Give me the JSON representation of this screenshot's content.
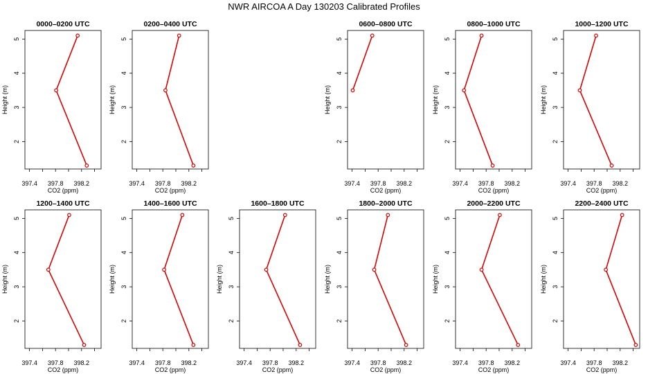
{
  "title": "NWR AIRCOA A  Day 130203  Calibrated Profiles",
  "colors": {
    "series": "#dd0000",
    "axis": "#000000",
    "background": "#ffffff"
  },
  "chart_data": {
    "type": "line",
    "title": "NWR AIRCOA A  Day 130203  Calibrated Profiles",
    "xlabel": "CO2 (ppm)",
    "ylabel": "Height (m)",
    "xlim": [
      397.33,
      398.5
    ],
    "ylim": [
      1.2,
      5.25
    ],
    "xticks": [
      "397.4",
      "397.8",
      "398.2"
    ],
    "yticks": [
      "2",
      "3",
      "4",
      "5"
    ],
    "heights": [
      5.1,
      3.5,
      1.3
    ],
    "grid": false,
    "panels": [
      {
        "title": "0000–0200 UTC",
        "co2": [
          398.14,
          397.81,
          398.28
        ]
      },
      {
        "title": "0200–0400 UTC",
        "co2": [
          398.05,
          397.84,
          398.27
        ]
      },
      {
        "title": "",
        "co2": []
      },
      {
        "title": "0600–0800 UTC",
        "co2": [
          397.71,
          397.41,
          null
        ]
      },
      {
        "title": "0800–1000 UTC",
        "co2": [
          397.73,
          397.46,
          397.9
        ]
      },
      {
        "title": "1000–1200 UTC",
        "co2": [
          397.83,
          397.58,
          398.07
        ]
      },
      {
        "title": "1200–1400 UTC",
        "co2": [
          398.01,
          397.69,
          398.24
        ]
      },
      {
        "title": "1400–1600 UTC",
        "co2": [
          398.1,
          397.82,
          398.27
        ]
      },
      {
        "title": "1600–1800 UTC",
        "co2": [
          398.03,
          397.74,
          398.26
        ]
      },
      {
        "title": "1800–2000 UTC",
        "co2": [
          397.95,
          397.74,
          398.23
        ]
      },
      {
        "title": "2000–2200 UTC",
        "co2": [
          398.01,
          397.73,
          398.29
        ]
      },
      {
        "title": "2200–2400 UTC",
        "co2": [
          398.23,
          397.98,
          398.44
        ]
      }
    ]
  }
}
